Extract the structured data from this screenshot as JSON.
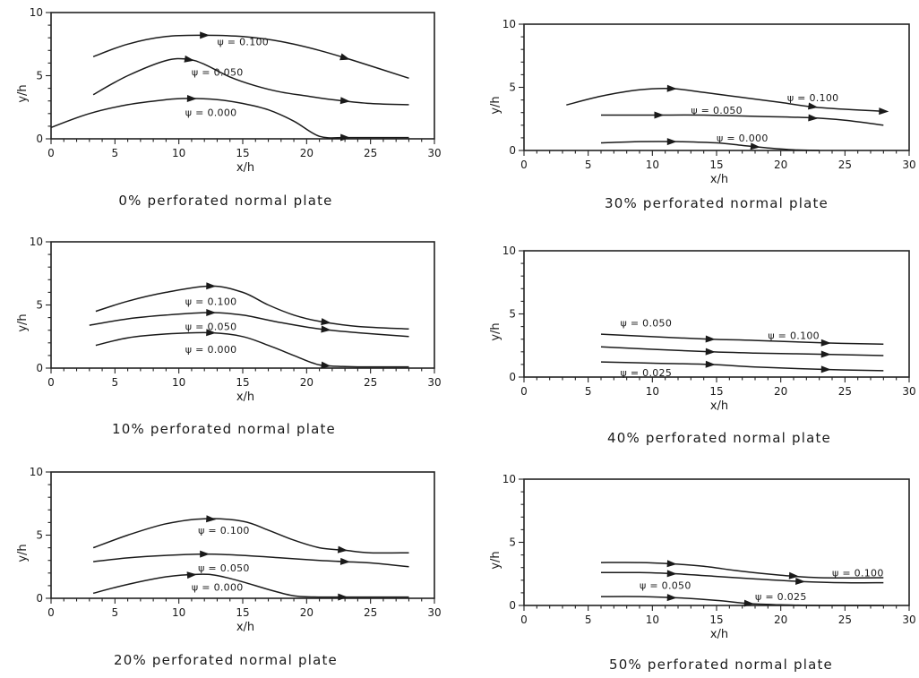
{
  "chart_data": [
    {
      "type": "line",
      "caption": "0% perforated normal plate",
      "xlabel": "x/h",
      "ylabel": "y/h",
      "xlim": [
        0,
        30
      ],
      "ylim": [
        0,
        10
      ],
      "xticks": [
        0,
        5,
        10,
        15,
        20,
        25,
        30
      ],
      "yticks": [
        0,
        5,
        10
      ],
      "series": [
        {
          "name": "ψ = 0.100",
          "x": [
            3.3,
            6,
            9,
            12,
            15,
            18,
            21,
            24,
            28
          ],
          "y": [
            6.5,
            7.5,
            8.1,
            8.2,
            8.1,
            7.7,
            7.0,
            6.1,
            4.8
          ],
          "arrows": [
            12,
            23
          ]
        },
        {
          "name": "ψ = 0.050",
          "x": [
            3.3,
            6,
            9,
            10.7,
            12,
            14,
            16,
            18,
            20,
            22,
            25,
            28
          ],
          "y": [
            3.5,
            5.0,
            6.2,
            6.3,
            5.9,
            4.9,
            4.2,
            3.7,
            3.4,
            3.1,
            2.8,
            2.7
          ],
          "arrows": [
            10.8,
            23
          ]
        },
        {
          "name": "ψ = 0.000",
          "x": [
            0,
            3,
            6,
            9,
            10.7,
            13,
            15,
            17,
            19,
            21,
            23,
            25,
            28
          ],
          "y": [
            0.9,
            2.0,
            2.7,
            3.1,
            3.2,
            3.1,
            2.8,
            2.3,
            1.4,
            0.2,
            0.1,
            0.1,
            0.1
          ],
          "arrows": [
            11,
            23
          ]
        }
      ]
    },
    {
      "type": "line",
      "caption": "30% perforated normal plate",
      "xlabel": "x/h",
      "ylabel": "y/h",
      "xlim": [
        0,
        30
      ],
      "ylim": [
        0,
        10
      ],
      "xticks": [
        0,
        5,
        10,
        15,
        20,
        25,
        30
      ],
      "yticks": [
        0,
        5,
        10
      ],
      "series": [
        {
          "name": "ψ = 0.100",
          "x": [
            3.3,
            6,
            9,
            11.5,
            14,
            17,
            20,
            23,
            28
          ],
          "y": [
            3.6,
            4.3,
            4.8,
            4.9,
            4.6,
            4.2,
            3.8,
            3.4,
            3.1
          ],
          "arrows": [
            11.5,
            22.5,
            28
          ]
        },
        {
          "name": "ψ = 0.050",
          "x": [
            6,
            10,
            14,
            18,
            22,
            25,
            28
          ],
          "y": [
            2.8,
            2.8,
            2.8,
            2.7,
            2.6,
            2.4,
            2.0
          ],
          "arrows": [
            10.5,
            22.5
          ]
        },
        {
          "name": "ψ = 0.000",
          "x": [
            6,
            9,
            12,
            15,
            17,
            19,
            21,
            23
          ],
          "y": [
            0.6,
            0.7,
            0.7,
            0.6,
            0.4,
            0.2,
            0.05,
            0.0
          ],
          "arrows": [
            11.5,
            18
          ]
        }
      ]
    },
    {
      "type": "line",
      "caption": "10% perforated normal plate",
      "xlabel": "x/h",
      "ylabel": "y/h",
      "xlim": [
        0,
        30
      ],
      "ylim": [
        0,
        10
      ],
      "xticks": [
        0,
        5,
        10,
        15,
        20,
        25,
        30
      ],
      "yticks": [
        0,
        5,
        10
      ],
      "series": [
        {
          "name": "ψ = 0.100",
          "x": [
            3.5,
            6,
            9,
            12.5,
            15,
            17,
            19,
            21,
            24,
            28
          ],
          "y": [
            4.5,
            5.3,
            6.0,
            6.5,
            6.0,
            5.0,
            4.2,
            3.7,
            3.3,
            3.1
          ],
          "arrows": [
            12.5,
            21.5
          ]
        },
        {
          "name": "ψ = 0.050",
          "x": [
            3,
            6,
            9,
            12.5,
            15,
            18,
            21,
            24,
            28
          ],
          "y": [
            3.4,
            3.9,
            4.2,
            4.4,
            4.2,
            3.6,
            3.1,
            2.8,
            2.5
          ],
          "arrows": [
            12.5,
            21.5
          ]
        },
        {
          "name": "ψ = 0.000",
          "x": [
            3.5,
            6,
            9,
            12.5,
            15,
            17,
            19,
            20.5,
            21.5,
            24,
            28
          ],
          "y": [
            1.8,
            2.4,
            2.7,
            2.8,
            2.5,
            1.8,
            1.0,
            0.4,
            0.2,
            0.1,
            0.1
          ],
          "arrows": [
            12.5,
            21.5
          ]
        }
      ]
    },
    {
      "type": "line",
      "caption": "40% perforated normal plate",
      "xlabel": "x/h",
      "ylabel": "y/h",
      "xlim": [
        0,
        30
      ],
      "ylim": [
        0,
        10
      ],
      "xticks": [
        0,
        5,
        10,
        15,
        20,
        25,
        30
      ],
      "yticks": [
        0,
        5,
        10
      ],
      "series": [
        {
          "name": "ψ = 0.100",
          "x": [
            6,
            10,
            14.5,
            18,
            23.5,
            28
          ],
          "y": [
            3.4,
            3.2,
            3.0,
            2.9,
            2.7,
            2.6
          ],
          "arrows": [
            14.5,
            23.5
          ]
        },
        {
          "name": "ψ = 0.050",
          "x": [
            6,
            10,
            14.5,
            18,
            23.5,
            28
          ],
          "y": [
            2.4,
            2.2,
            2.0,
            1.9,
            1.8,
            1.7
          ],
          "arrows": [
            14.5,
            23.5
          ]
        },
        {
          "name": "ψ = 0.025",
          "x": [
            6,
            10,
            14.5,
            18,
            23.5,
            28
          ],
          "y": [
            1.2,
            1.1,
            1.0,
            0.8,
            0.6,
            0.5
          ],
          "arrows": [
            14.5,
            23.5
          ]
        }
      ]
    },
    {
      "type": "line",
      "caption": "20% perforated normal plate",
      "xlabel": "x/h",
      "ylabel": "y/h",
      "xlim": [
        0,
        30
      ],
      "ylim": [
        0,
        10
      ],
      "xticks": [
        0,
        5,
        10,
        15,
        20,
        25,
        30
      ],
      "yticks": [
        0,
        5,
        10
      ],
      "series": [
        {
          "name": "ψ = 0.100",
          "x": [
            3.3,
            6,
            9,
            12,
            15,
            17,
            19,
            21,
            23,
            25,
            28
          ],
          "y": [
            4.0,
            5.0,
            5.9,
            6.3,
            6.1,
            5.4,
            4.6,
            4.0,
            3.8,
            3.6,
            3.6
          ],
          "arrows": [
            12.5,
            22.8
          ]
        },
        {
          "name": "ψ = 0.050",
          "x": [
            3.3,
            6,
            9,
            12,
            15,
            18,
            21,
            23,
            25,
            28
          ],
          "y": [
            2.9,
            3.2,
            3.4,
            3.5,
            3.4,
            3.2,
            3.0,
            2.9,
            2.8,
            2.5
          ],
          "arrows": [
            12,
            23
          ]
        },
        {
          "name": "ψ = 0.000",
          "x": [
            3.3,
            6,
            9,
            11.5,
            13,
            15,
            17,
            19,
            21,
            23,
            25,
            28
          ],
          "y": [
            0.4,
            1.1,
            1.7,
            1.9,
            1.8,
            1.3,
            0.7,
            0.2,
            0.1,
            0.1,
            0.1,
            0.1
          ],
          "arrows": [
            11,
            22.8
          ]
        }
      ]
    },
    {
      "type": "line",
      "caption": "50% perforated normal plate",
      "xlabel": "x/h",
      "ylabel": "y/h",
      "xlim": [
        0,
        30
      ],
      "ylim": [
        0,
        10
      ],
      "xticks": [
        0,
        5,
        10,
        15,
        20,
        25,
        30
      ],
      "yticks": [
        0,
        5,
        10
      ],
      "series": [
        {
          "name": "ψ = 0.100",
          "x": [
            6,
            9,
            11.5,
            14,
            17,
            20,
            23,
            28
          ],
          "y": [
            3.4,
            3.4,
            3.3,
            3.1,
            2.7,
            2.4,
            2.2,
            2.2
          ],
          "arrows": [
            11.5,
            21
          ]
        },
        {
          "name": "ψ = 0.050",
          "x": [
            6,
            9,
            12,
            15,
            18,
            21.5,
            25,
            28
          ],
          "y": [
            2.6,
            2.6,
            2.5,
            2.3,
            2.1,
            1.9,
            1.8,
            1.8
          ],
          "arrows": [
            11.5,
            21.5
          ]
        },
        {
          "name": "ψ = 0.025",
          "x": [
            6,
            9,
            12,
            15,
            17.5,
            20,
            23,
            28
          ],
          "y": [
            0.7,
            0.7,
            0.6,
            0.4,
            0.15,
            0.05,
            0.0,
            0.0
          ],
          "arrows": [
            11.5,
            17.5
          ]
        }
      ]
    }
  ]
}
